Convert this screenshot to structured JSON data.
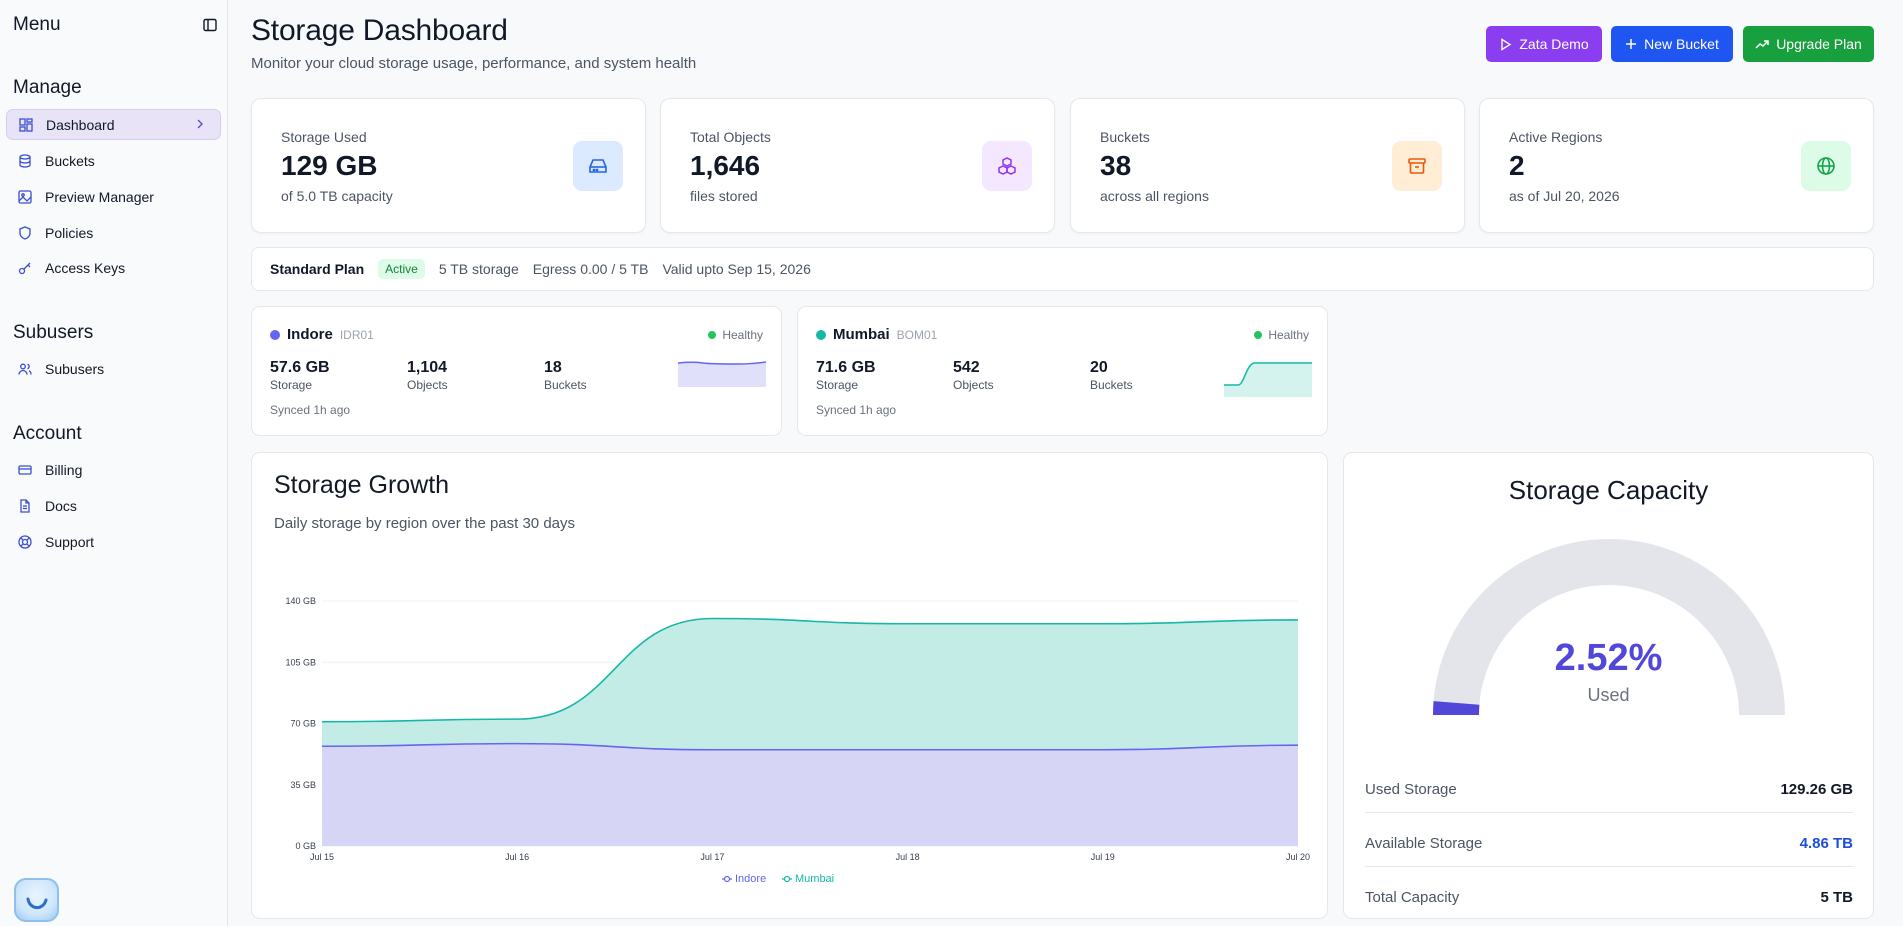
{
  "sidebar": {
    "title": "Menu",
    "sections": {
      "manage": "Manage",
      "subusers": "Subusers",
      "account": "Account"
    },
    "items": [
      {
        "label": "Dashboard",
        "icon": "dashboard-icon"
      },
      {
        "label": "Buckets",
        "icon": "database-icon"
      },
      {
        "label": "Preview Manager",
        "icon": "image-icon"
      },
      {
        "label": "Policies",
        "icon": "shield-icon"
      },
      {
        "label": "Access Keys",
        "icon": "key-icon"
      },
      {
        "label": "Subusers",
        "icon": "users-icon"
      },
      {
        "label": "Billing",
        "icon": "credit-card-icon"
      },
      {
        "label": "Docs",
        "icon": "document-icon"
      },
      {
        "label": "Support",
        "icon": "lifebuoy-icon"
      }
    ]
  },
  "header": {
    "title": "Storage Dashboard",
    "subtitle": "Monitor your cloud storage usage, performance, and system health",
    "buttons": {
      "demo": "Zata Demo",
      "new_bucket": "New Bucket",
      "upgrade": "Upgrade Plan"
    }
  },
  "stats": [
    {
      "label": "Storage Used",
      "value": "129 GB",
      "sub": "of 5.0 TB capacity",
      "icon": "hard-drive-icon",
      "color": "#2563eb",
      "bg": "#dbeafe"
    },
    {
      "label": "Total Objects",
      "value": "1,646",
      "sub": "files stored",
      "icon": "boxes-icon",
      "color": "#9333ea",
      "bg": "#f3e8ff"
    },
    {
      "label": "Buckets",
      "value": "38",
      "sub": "across all regions",
      "icon": "archive-icon",
      "color": "#ea580c",
      "bg": "#ffedd5"
    },
    {
      "label": "Active Regions",
      "value": "2",
      "sub": "as of Jul 20, 2026",
      "icon": "globe-icon",
      "color": "#16a34a",
      "bg": "#dcfce7"
    }
  ],
  "plan": {
    "name": "Standard Plan",
    "status": "Active",
    "storage": "5 TB storage",
    "egress": "Egress 0.00 / 5 TB",
    "valid": "Valid upto Sep 15, 2026"
  },
  "regions": [
    {
      "name": "Indore",
      "code": "IDR01",
      "health": "Healthy",
      "storage": "57.6 GB",
      "storage_label": "Storage",
      "objects": "1,104",
      "objects_label": "Objects",
      "buckets": "18",
      "buckets_label": "Buckets",
      "synced": "Synced 1h ago",
      "color": "#6366f1"
    },
    {
      "name": "Mumbai",
      "code": "BOM01",
      "health": "Healthy",
      "storage": "71.6 GB",
      "storage_label": "Storage",
      "objects": "542",
      "objects_label": "Objects",
      "buckets": "20",
      "buckets_label": "Buckets",
      "synced": "Synced 1h ago",
      "color": "#14b8a6"
    }
  ],
  "growth": {
    "title": "Storage Growth",
    "subtitle": "Daily storage by region over the past 30 days"
  },
  "chart_data": {
    "type": "area",
    "stacked": true,
    "x": [
      "Jul 15",
      "Jul 16",
      "Jul 17",
      "Jul 18",
      "Jul 19",
      "Jul 20"
    ],
    "series": [
      {
        "name": "Indore",
        "color": "#6366f1",
        "values": [
          57,
          58.5,
          55,
          55,
          55,
          57.6
        ]
      },
      {
        "name": "Mumbai",
        "color": "#14b8a6",
        "values": [
          14,
          14,
          75,
          72,
          72,
          71.6
        ]
      }
    ],
    "y_ticks": [
      "0 GB",
      "35 GB",
      "70 GB",
      "105 GB",
      "140 GB"
    ],
    "ylim": [
      0,
      140
    ],
    "legend": "bottom-center"
  },
  "capacity": {
    "title": "Storage Capacity",
    "percent": "2.52%",
    "percent_value": 2.52,
    "used_label": "Used",
    "rows": [
      {
        "label": "Used Storage",
        "value": "129.26 GB"
      },
      {
        "label": "Available Storage",
        "value": "4.86 TB"
      },
      {
        "label": "Total Capacity",
        "value": "5 TB"
      }
    ]
  }
}
